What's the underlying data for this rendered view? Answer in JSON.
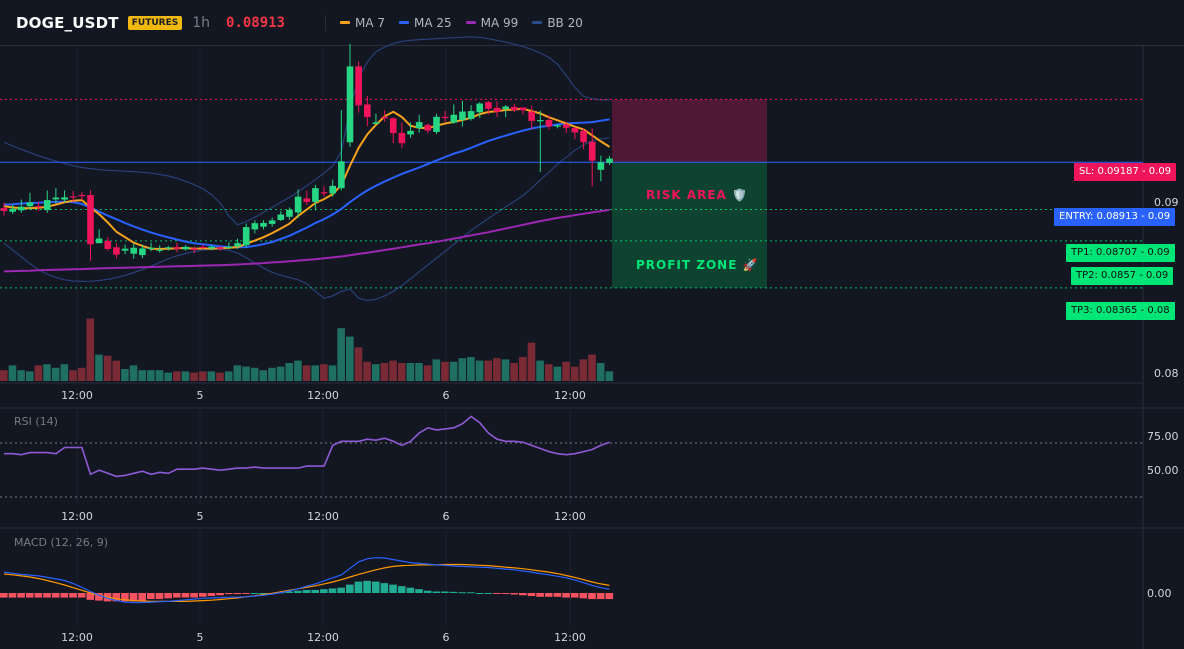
{
  "header": {
    "symbol": "DOGE_USDT",
    "badge": "FUTURES",
    "timeframe": "1h",
    "price": "0.08913",
    "legend": [
      {
        "label": "MA 7",
        "color": "#f7a21b"
      },
      {
        "label": "MA 25",
        "color": "#2962ff"
      },
      {
        "label": "MA 99",
        "color": "#9c27b0"
      },
      {
        "label": "BB 20",
        "color": "#2a4a8c"
      }
    ]
  },
  "levels": {
    "sl": {
      "label": "SL: 0.09187 - 0.09",
      "value": 0.09187,
      "color": "#f0145a"
    },
    "entry": {
      "label": "ENTRY: 0.08913 - 0.09",
      "value": 0.08913,
      "color": "#2962ff"
    },
    "tp1": {
      "label": "TP1: 0.08707 - 0.09",
      "value": 0.08707,
      "color": "#00e676"
    },
    "tp2": {
      "label": "TP2: 0.0857 - 0.09",
      "value": 0.0857,
      "color": "#00e676"
    },
    "tp3": {
      "label": "TP3: 0.08365 - 0.08",
      "value": 0.08365,
      "color": "#00e676"
    }
  },
  "zones": {
    "risk": "RISK AREA 🛡️",
    "profit": "PROFIT ZONE 🚀"
  },
  "price_axis": [
    "0.09",
    "0.08"
  ],
  "x_ticks": [
    "12:00",
    "5",
    "12:00",
    "6",
    "12:00"
  ],
  "rsi": {
    "label": "RSI (14)",
    "levels": [
      "75.00",
      "50.00"
    ],
    "upper": 70,
    "lower": 30
  },
  "macd": {
    "label": "MACD (12, 26, 9)",
    "zero_label": "0.00"
  },
  "chart_data": {
    "type": "candlestick",
    "ylim": [
      0.0795,
      0.0942
    ],
    "candles": [
      [
        0.08713,
        0.087,
        0.08737,
        0.0868
      ],
      [
        0.08697,
        0.0871,
        0.08728,
        0.08688
      ],
      [
        0.08703,
        0.08719,
        0.0875,
        0.08692
      ],
      [
        0.08721,
        0.08738,
        0.0878,
        0.08705
      ],
      [
        0.08722,
        0.08718,
        0.08741,
        0.087
      ],
      [
        0.08704,
        0.08748,
        0.0879,
        0.08693
      ],
      [
        0.08751,
        0.08759,
        0.088,
        0.08733
      ],
      [
        0.0875,
        0.0876,
        0.0879,
        0.08737
      ],
      [
        0.08764,
        0.08762,
        0.08788,
        0.08737
      ],
      [
        0.0877,
        0.08767,
        0.08783,
        0.08748
      ],
      [
        0.0877,
        0.08555,
        0.08791,
        0.08483
      ],
      [
        0.0856,
        0.0858,
        0.0862,
        0.08559
      ],
      [
        0.0857,
        0.08535,
        0.08587,
        0.08527
      ],
      [
        0.08542,
        0.0851,
        0.0856,
        0.08494
      ],
      [
        0.08527,
        0.08536,
        0.08554,
        0.08512
      ],
      [
        0.08514,
        0.0854,
        0.0856,
        0.08492
      ],
      [
        0.08508,
        0.08537,
        0.08554,
        0.08495
      ],
      [
        0.08538,
        0.0854,
        0.08562,
        0.08525
      ],
      [
        0.0853,
        0.08532,
        0.0855,
        0.08519
      ],
      [
        0.08537,
        0.08542,
        0.08548,
        0.08528
      ],
      [
        0.08543,
        0.08535,
        0.08562,
        0.0852
      ],
      [
        0.08533,
        0.08544,
        0.08551,
        0.08527
      ],
      [
        0.08537,
        0.0853,
        0.08545,
        0.08517
      ],
      [
        0.08544,
        0.0854,
        0.08555,
        0.08534
      ],
      [
        0.08537,
        0.08545,
        0.08551,
        0.08529
      ],
      [
        0.08542,
        0.08535,
        0.08548,
        0.08527
      ],
      [
        0.08543,
        0.08545,
        0.08564,
        0.08533
      ],
      [
        0.08547,
        0.0856,
        0.0858,
        0.08535
      ],
      [
        0.08551,
        0.0863,
        0.08646,
        0.08541
      ],
      [
        0.0862,
        0.08647,
        0.0866,
        0.08603
      ],
      [
        0.08632,
        0.08648,
        0.0866,
        0.0862
      ],
      [
        0.08644,
        0.08659,
        0.08671,
        0.08632
      ],
      [
        0.08661,
        0.08685,
        0.087,
        0.08656
      ],
      [
        0.08675,
        0.08705,
        0.08716,
        0.08662
      ],
      [
        0.08694,
        0.08763,
        0.08794,
        0.0867
      ],
      [
        0.08755,
        0.0874,
        0.0879,
        0.08725
      ],
      [
        0.0874,
        0.088,
        0.08814,
        0.08703
      ],
      [
        0.08782,
        0.08777,
        0.08808,
        0.08764
      ],
      [
        0.08777,
        0.0881,
        0.08837,
        0.08763
      ],
      [
        0.088,
        0.08917,
        0.0914,
        0.0879
      ],
      [
        0.09,
        0.09331,
        0.0943,
        0.0898
      ],
      [
        0.09331,
        0.09161,
        0.09352,
        0.0913
      ],
      [
        0.09165,
        0.0911,
        0.09202,
        0.09071
      ],
      [
        0.0908,
        0.09087,
        0.09125,
        0.0908
      ],
      [
        0.0911,
        0.09105,
        0.0914,
        0.0909
      ],
      [
        0.09105,
        0.0904,
        0.09108,
        0.08996
      ],
      [
        0.09041,
        0.08996,
        0.09087,
        0.08976
      ],
      [
        0.09034,
        0.0905,
        0.09086,
        0.0902
      ],
      [
        0.09062,
        0.09088,
        0.0912,
        0.09042
      ],
      [
        0.09076,
        0.09051,
        0.09082,
        0.0904
      ],
      [
        0.09045,
        0.09111,
        0.09124,
        0.09036
      ],
      [
        0.09111,
        0.0911,
        0.09137,
        0.0909
      ],
      [
        0.09086,
        0.0912,
        0.09165,
        0.09081
      ],
      [
        0.09098,
        0.09134,
        0.09181,
        0.09069
      ],
      [
        0.09102,
        0.09136,
        0.09161,
        0.09095
      ],
      [
        0.09131,
        0.09169,
        0.09175,
        0.09106
      ],
      [
        0.09175,
        0.09146,
        0.0918,
        0.09121
      ],
      [
        0.0915,
        0.09133,
        0.0918,
        0.0911
      ],
      [
        0.09145,
        0.09156,
        0.09162,
        0.0911
      ],
      [
        0.09154,
        0.0914,
        0.09168,
        0.09132
      ],
      [
        0.09152,
        0.0914,
        0.0915,
        0.09122
      ],
      [
        0.09134,
        0.09093,
        0.0916,
        0.09057
      ],
      [
        0.09092,
        0.09097,
        0.09138,
        0.0887
      ],
      [
        0.09097,
        0.09069,
        0.09118,
        0.09056
      ],
      [
        0.0907,
        0.09074,
        0.09077,
        0.09061
      ],
      [
        0.09078,
        0.09063,
        0.0909,
        0.0904
      ],
      [
        0.09062,
        0.09043,
        0.09067,
        0.09013
      ],
      [
        0.0905,
        0.09,
        0.09061,
        0.0897
      ],
      [
        0.09002,
        0.0892,
        0.0906,
        0.08809
      ],
      [
        0.0888,
        0.08913,
        0.08942,
        0.0883
      ],
      [
        0.0891,
        0.08929,
        0.0894,
        0.08901
      ]
    ],
    "volume": [
      9,
      13,
      9,
      8,
      13,
      14,
      11,
      14,
      9,
      11,
      52,
      22,
      21,
      17,
      10,
      13,
      9,
      9,
      9,
      7,
      8,
      8,
      7,
      8,
      8,
      7,
      8,
      13,
      12,
      11,
      9,
      11,
      12,
      15,
      17,
      13,
      13,
      14,
      13,
      44,
      37,
      28,
      16,
      14,
      15,
      17,
      15,
      15,
      15,
      13,
      18,
      16,
      16,
      19,
      20,
      17,
      17,
      19,
      18,
      15,
      20,
      32,
      17,
      14,
      12,
      16,
      12,
      18,
      22,
      15,
      8
    ],
    "ma7": [
      0.08721,
      0.08716,
      0.08712,
      0.08713,
      0.08714,
      0.08719,
      0.08728,
      0.08738,
      0.08745,
      0.08748,
      0.08716,
      0.08686,
      0.0865,
      0.08609,
      0.08586,
      0.08562,
      0.08548,
      0.08536,
      0.08535,
      0.08536,
      0.08538,
      0.08539,
      0.08536,
      0.08537,
      0.08536,
      0.08538,
      0.0854,
      0.08543,
      0.08557,
      0.08571,
      0.08586,
      0.08604,
      0.08624,
      0.08645,
      0.08679,
      0.08707,
      0.08735,
      0.08752,
      0.08774,
      0.08814,
      0.08898,
      0.08976,
      0.09035,
      0.09076,
      0.09113,
      0.09133,
      0.0911,
      0.09072,
      0.09063,
      0.09061,
      0.09073,
      0.09082,
      0.09089,
      0.09097,
      0.09107,
      0.09123,
      0.09132,
      0.09136,
      0.09141,
      0.09143,
      0.09146,
      0.09136,
      0.09126,
      0.09109,
      0.09096,
      0.09082,
      0.09068,
      0.09056,
      0.0903,
      0.09004,
      0.0898
    ],
    "ma25": [
      0.08728,
      0.0873,
      0.08733,
      0.08735,
      0.08736,
      0.08738,
      0.0874,
      0.08741,
      0.08738,
      0.08731,
      0.08716,
      0.08697,
      0.0868,
      0.08664,
      0.08648,
      0.08633,
      0.08619,
      0.08606,
      0.08595,
      0.08585,
      0.08576,
      0.08567,
      0.0856,
      0.08555,
      0.08551,
      0.08546,
      0.08543,
      0.08542,
      0.08543,
      0.08548,
      0.08556,
      0.08565,
      0.08578,
      0.08592,
      0.0861,
      0.08628,
      0.08648,
      0.08665,
      0.08685,
      0.0871,
      0.08739,
      0.08766,
      0.0879,
      0.0881,
      0.08829,
      0.08846,
      0.08862,
      0.08876,
      0.0889,
      0.08905,
      0.08921,
      0.08936,
      0.0895,
      0.08962,
      0.08976,
      0.08991,
      0.09006,
      0.09018,
      0.09029,
      0.0904,
      0.09051,
      0.0906,
      0.09067,
      0.09072,
      0.09078,
      0.09082,
      0.09084,
      0.09086,
      0.09088,
      0.09094,
      0.091
    ],
    "ma99": [
      0.08437,
      0.08438,
      0.08439,
      0.0844,
      0.08442,
      0.08443,
      0.08444,
      0.08445,
      0.08446,
      0.08447,
      0.08448,
      0.0845,
      0.08451,
      0.08452,
      0.08453,
      0.08454,
      0.08455,
      0.08456,
      0.08457,
      0.08458,
      0.08459,
      0.0846,
      0.08461,
      0.08462,
      0.08463,
      0.08464,
      0.08465,
      0.08467,
      0.08469,
      0.08471,
      0.08473,
      0.08476,
      0.08478,
      0.08481,
      0.08484,
      0.08487,
      0.0849,
      0.08494,
      0.08498,
      0.08502,
      0.08507,
      0.08513,
      0.08518,
      0.08524,
      0.0853,
      0.08536,
      0.08542,
      0.08548,
      0.08554,
      0.0856,
      0.08566,
      0.08573,
      0.0858,
      0.08587,
      0.08594,
      0.08601,
      0.08608,
      0.08616,
      0.08624,
      0.08632,
      0.0864,
      0.08648,
      0.08656,
      0.08663,
      0.0867,
      0.08676,
      0.08682,
      0.08688,
      0.08694,
      0.087,
      0.08705
    ],
    "bb_upper": [
      0.09,
      0.08984,
      0.08969,
      0.08955,
      0.08941,
      0.08929,
      0.08918,
      0.08907,
      0.08898,
      0.0889,
      0.08885,
      0.08881,
      0.08878,
      0.08876,
      0.08874,
      0.08872,
      0.08869,
      0.08865,
      0.0886,
      0.08853,
      0.08843,
      0.0883,
      0.08815,
      0.08797,
      0.08772,
      0.08735,
      0.08678,
      0.0864,
      0.08654,
      0.08673,
      0.08694,
      0.08716,
      0.08738,
      0.0876,
      0.08784,
      0.0881,
      0.08837,
      0.08866,
      0.08898,
      0.0896,
      0.0915,
      0.0928,
      0.0935,
      0.09395,
      0.09415,
      0.0943,
      0.0944,
      0.09445,
      0.09448,
      0.0945,
      0.09452,
      0.09454,
      0.09456,
      0.09458,
      0.0946,
      0.09458,
      0.09452,
      0.09445,
      0.09437,
      0.09428,
      0.09418,
      0.09405,
      0.0939,
      0.0937,
      0.0934,
      0.0929,
      0.0924,
      0.092,
      0.0919,
      0.09185,
      0.09185
    ],
    "bb_lower": [
      0.0856,
      0.0853,
      0.085,
      0.0847,
      0.08445,
      0.08425,
      0.0841,
      0.084,
      0.08395,
      0.08393,
      0.08394,
      0.08397,
      0.08402,
      0.0841,
      0.0842,
      0.08432,
      0.08445,
      0.0846,
      0.08476,
      0.08492,
      0.08505,
      0.08515,
      0.08523,
      0.0853,
      0.08533,
      0.08533,
      0.08529,
      0.08517,
      0.08497,
      0.08473,
      0.08451,
      0.08433,
      0.0842,
      0.0841,
      0.084,
      0.08383,
      0.0835,
      0.0832,
      0.0833,
      0.0835,
      0.0836,
      0.0832,
      0.0831,
      0.08315,
      0.0833,
      0.0835,
      0.08375,
      0.08405,
      0.08435,
      0.08465,
      0.08495,
      0.08525,
      0.08555,
      0.08585,
      0.08615,
      0.08642,
      0.08668,
      0.08693,
      0.08718,
      0.08743,
      0.08768,
      0.088,
      0.08835,
      0.0887,
      0.08905,
      0.08935,
      0.08965,
      0.0899,
      0.09005,
      0.09015,
      0.0902
    ],
    "rsi": [
      50,
      50,
      49,
      51,
      51,
      51,
      50,
      56,
      56,
      56,
      30,
      34,
      31,
      28,
      29,
      31,
      33,
      30,
      32,
      31,
      35,
      35,
      35,
      36,
      35,
      34,
      35,
      36,
      36,
      37,
      36,
      36,
      36,
      36,
      36,
      38,
      38,
      38,
      58,
      62,
      62,
      62,
      64,
      63,
      65,
      62,
      58,
      62,
      70,
      75,
      73,
      74,
      75,
      79,
      86,
      80,
      70,
      64,
      62,
      62,
      61,
      58,
      55,
      52,
      50,
      49,
      50,
      52,
      54,
      58,
      61
    ],
    "macd": [
      55,
      52,
      49,
      47,
      45,
      41,
      37,
      33,
      25,
      15,
      4,
      -6,
      -14,
      -20,
      -24,
      -25,
      -25,
      -24,
      -23,
      -22,
      -20,
      -18,
      -16,
      -14,
      -13,
      -12,
      -11,
      -11,
      -10,
      -8,
      -6,
      -3,
      1,
      5,
      11,
      18,
      24,
      32,
      40,
      48,
      65,
      82,
      90,
      93,
      92,
      88,
      84,
      80,
      78,
      76,
      74,
      73,
      71,
      70,
      69,
      68,
      67,
      65,
      63,
      61,
      58,
      55,
      51,
      48,
      44,
      40,
      34,
      27,
      20,
      14,
      10
    ],
    "signal": [
      50,
      48,
      45,
      42,
      38,
      33,
      27,
      21,
      14,
      7,
      0,
      -6,
      -11,
      -15,
      -18,
      -20,
      -21,
      -22,
      -22,
      -22,
      -22,
      -22,
      -21,
      -20,
      -19,
      -17,
      -15,
      -13,
      -10,
      -7,
      -4,
      -1,
      3,
      7,
      11,
      15,
      19,
      24,
      29,
      35,
      42,
      49,
      55,
      61,
      66,
      70,
      72,
      73,
      74,
      74,
      74,
      75,
      75,
      75,
      74,
      73,
      72,
      70,
      68,
      66,
      64,
      61,
      58,
      55,
      51,
      46,
      41,
      35,
      29,
      24,
      20
    ],
    "hist": [
      -12,
      -12,
      -12,
      -12,
      -12,
      -12,
      -12,
      -12,
      -12,
      -12,
      -18,
      -20,
      -22,
      -22,
      -22,
      -22,
      -20,
      -16,
      -16,
      -14,
      -12,
      -12,
      -12,
      -10,
      -8,
      -6,
      -3,
      -3,
      -1,
      0,
      0,
      0,
      2,
      4,
      6,
      8,
      8,
      10,
      12,
      14,
      22,
      30,
      32,
      30,
      26,
      22,
      18,
      14,
      10,
      6,
      4,
      4,
      3,
      2,
      2,
      0,
      0,
      -2,
      -2,
      -4,
      -6,
      -8,
      -10,
      -10,
      -10,
      -12,
      -12,
      -14,
      -16,
      -16,
      -16
    ]
  }
}
